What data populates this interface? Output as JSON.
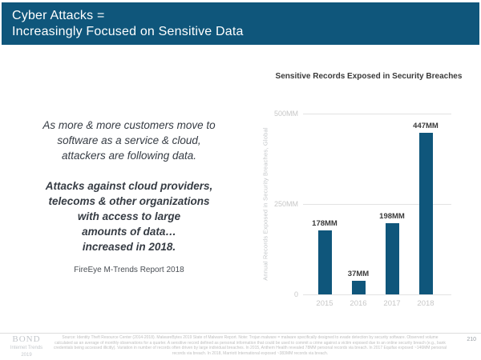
{
  "header": {
    "title_lines": [
      "Cyber Attacks =",
      "Increasingly Focused on Sensitive Data"
    ],
    "bg_color": "#0F567B",
    "text_color": "#FFFFFF"
  },
  "left_panel": {
    "paragraph1_lines": [
      "As more & more customers move to",
      "software as a service & cloud,",
      "attackers are following data."
    ],
    "paragraph2_lines": [
      "Attacks against cloud providers,",
      "telecoms & other organizations",
      "with access to large",
      "amounts of data…",
      "increased in 2018."
    ],
    "source": "FireEye M-Trends Report 2018"
  },
  "chart_data": {
    "type": "bar",
    "title": "Sensitive Records Exposed in Security Breaches",
    "ylabel": "Annual Records Exposed in Security Breaches, Global",
    "categories": [
      "2015",
      "2016",
      "2017",
      "2018"
    ],
    "values": [
      178,
      37,
      198,
      447
    ],
    "value_labels": [
      "178MM",
      "37MM",
      "198MM",
      "447MM"
    ],
    "unit": "MM",
    "ylim": [
      0,
      500
    ],
    "yticks": [
      {
        "value": 0,
        "label": "0"
      },
      {
        "value": 250,
        "label": "250MM"
      },
      {
        "value": 500,
        "label": "500MM"
      }
    ],
    "bar_color": "#0F567B",
    "grid": true,
    "legend": false
  },
  "footer": {
    "logo": {
      "name": "BOND",
      "subtitle": "Internet Trends",
      "year": "2019"
    },
    "note": "Source: Identity Theft Resource Center (2014-2018). MalwareBytes 2019 State of Malware Report. Note: Trojan malware = malware specifically designed to evade detection by security software. Observed volume calculated as an average of monthly observations for a quarter. A sensitive record defined as personal information that could be used to commit a crime against a victim exposed due to an online security breach (e.g., bank credentials being accessed illicitly). Variation in number of records often driven by large individual breaches. In 2015, Anthem Health revealed 78MM personal records via breach. In 2017 Equifax exposed ~146MM personal records via breach. In 2018, Marriott International exposed ~383MM records via breach.",
    "page_number": "210"
  }
}
